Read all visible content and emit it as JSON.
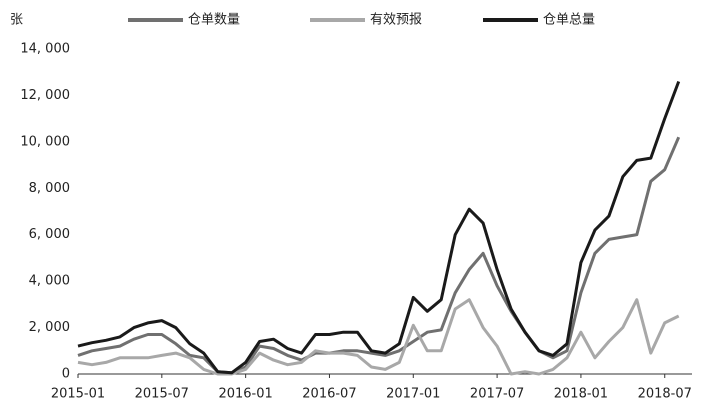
{
  "chart_data": {
    "type": "line",
    "y_label": "张",
    "x": [
      "2015-01",
      "2015-02",
      "2015-03",
      "2015-04",
      "2015-05",
      "2015-06",
      "2015-07",
      "2015-08",
      "2015-09",
      "2015-10",
      "2015-11",
      "2015-12",
      "2016-01",
      "2016-02",
      "2016-03",
      "2016-04",
      "2016-05",
      "2016-06",
      "2016-07",
      "2016-08",
      "2016-09",
      "2016-10",
      "2016-11",
      "2016-12",
      "2017-01",
      "2017-02",
      "2017-03",
      "2017-04",
      "2017-05",
      "2017-06",
      "2017-07",
      "2017-08",
      "2017-09",
      "2017-10",
      "2017-11",
      "2017-12",
      "2018-01",
      "2018-02",
      "2018-03",
      "2018-04",
      "2018-05",
      "2018-06",
      "2018-07",
      "2018-08"
    ],
    "xticks": [
      "2015-01",
      "2015-07",
      "2016-01",
      "2016-07",
      "2017-01",
      "2017-07",
      "2018-01",
      "2018-07"
    ],
    "ylim": [
      0,
      14000
    ],
    "yticks": [
      0,
      {
        "value": 2000,
        "label": "2, 000"
      },
      {
        "value": 4000,
        "label": "4, 000"
      },
      {
        "value": 6000,
        "label": "6, 000"
      },
      {
        "value": 8000,
        "label": "8, 000"
      },
      {
        "value": 10000,
        "label": "10, 000"
      },
      {
        "value": 12000,
        "label": "12, 000"
      },
      {
        "value": 14000,
        "label": "14, 000"
      }
    ],
    "grid": false,
    "legend": "top",
    "series": [
      {
        "name": "仓单数量",
        "color": "#707070",
        "values": [
          800,
          1000,
          1100,
          1200,
          1500,
          1700,
          1700,
          1300,
          800,
          700,
          100,
          50,
          300,
          1200,
          1100,
          800,
          600,
          900,
          900,
          1000,
          1000,
          900,
          800,
          1000,
          1400,
          1800,
          1900,
          3500,
          4500,
          5200,
          3800,
          2700,
          1800,
          1000,
          700,
          1000,
          3500,
          5200,
          5800,
          5900,
          6000,
          8300,
          8800,
          10200
        ]
      },
      {
        "name": "有效预报",
        "color": "#a8a8a8",
        "values": [
          500,
          400,
          500,
          700,
          700,
          700,
          800,
          900,
          700,
          200,
          0,
          0,
          200,
          900,
          600,
          400,
          500,
          1000,
          900,
          900,
          800,
          300,
          200,
          500,
          2100,
          1000,
          1000,
          2800,
          3200,
          2000,
          1200,
          0,
          100,
          0,
          200,
          700,
          1800,
          700,
          1400,
          2000,
          3200,
          900,
          2200,
          2500
        ]
      },
      {
        "name": "仓单总量",
        "color": "#1a1a1a",
        "values": [
          1200,
          1350,
          1450,
          1600,
          2000,
          2200,
          2300,
          2000,
          1300,
          900,
          100,
          50,
          500,
          1400,
          1500,
          1100,
          900,
          1700,
          1700,
          1800,
          1800,
          1000,
          900,
          1300,
          3300,
          2700,
          3200,
          6000,
          7100,
          6500,
          4500,
          2800,
          1800,
          1000,
          800,
          1300,
          4800,
          6200,
          6800,
          8500,
          9200,
          9300,
          11000,
          12600
        ]
      }
    ]
  }
}
